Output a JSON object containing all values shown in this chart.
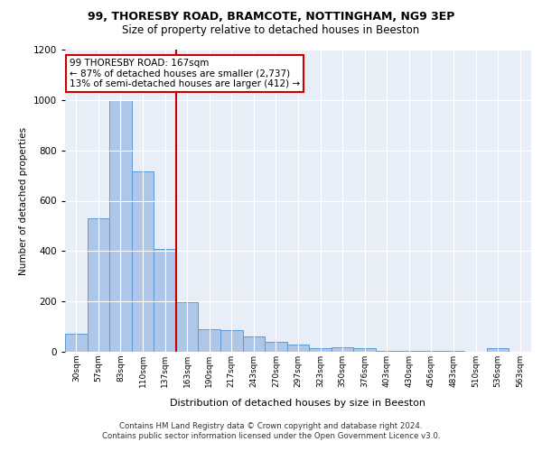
{
  "title1": "99, THORESBY ROAD, BRAMCOTE, NOTTINGHAM, NG9 3EP",
  "title2": "Size of property relative to detached houses in Beeston",
  "xlabel": "Distribution of detached houses by size in Beeston",
  "ylabel": "Number of detached properties",
  "footer1": "Contains HM Land Registry data © Crown copyright and database right 2024.",
  "footer2": "Contains public sector information licensed under the Open Government Licence v3.0.",
  "annotation_line1": "99 THORESBY ROAD: 167sqm",
  "annotation_line2": "← 87% of detached houses are smaller (2,737)",
  "annotation_line3": "13% of semi-detached houses are larger (412) →",
  "bin_labels": [
    "30sqm",
    "57sqm",
    "83sqm",
    "110sqm",
    "137sqm",
    "163sqm",
    "190sqm",
    "217sqm",
    "243sqm",
    "270sqm",
    "297sqm",
    "323sqm",
    "350sqm",
    "376sqm",
    "403sqm",
    "430sqm",
    "456sqm",
    "483sqm",
    "510sqm",
    "536sqm",
    "563sqm"
  ],
  "bar_values": [
    70,
    530,
    1000,
    715,
    407,
    197,
    90,
    85,
    60,
    40,
    30,
    15,
    18,
    15,
    5,
    5,
    5,
    5,
    0,
    15,
    0
  ],
  "bar_color": "#aec6e8",
  "bar_edge_color": "#5b9bd5",
  "vline_color": "#cc0000",
  "annotation_box_color": "#cc0000",
  "bg_color": "#e8eef7",
  "ylim": [
    0,
    1200
  ],
  "yticks": [
    0,
    200,
    400,
    600,
    800,
    1000,
    1200
  ],
  "vline_pos": 4.5
}
